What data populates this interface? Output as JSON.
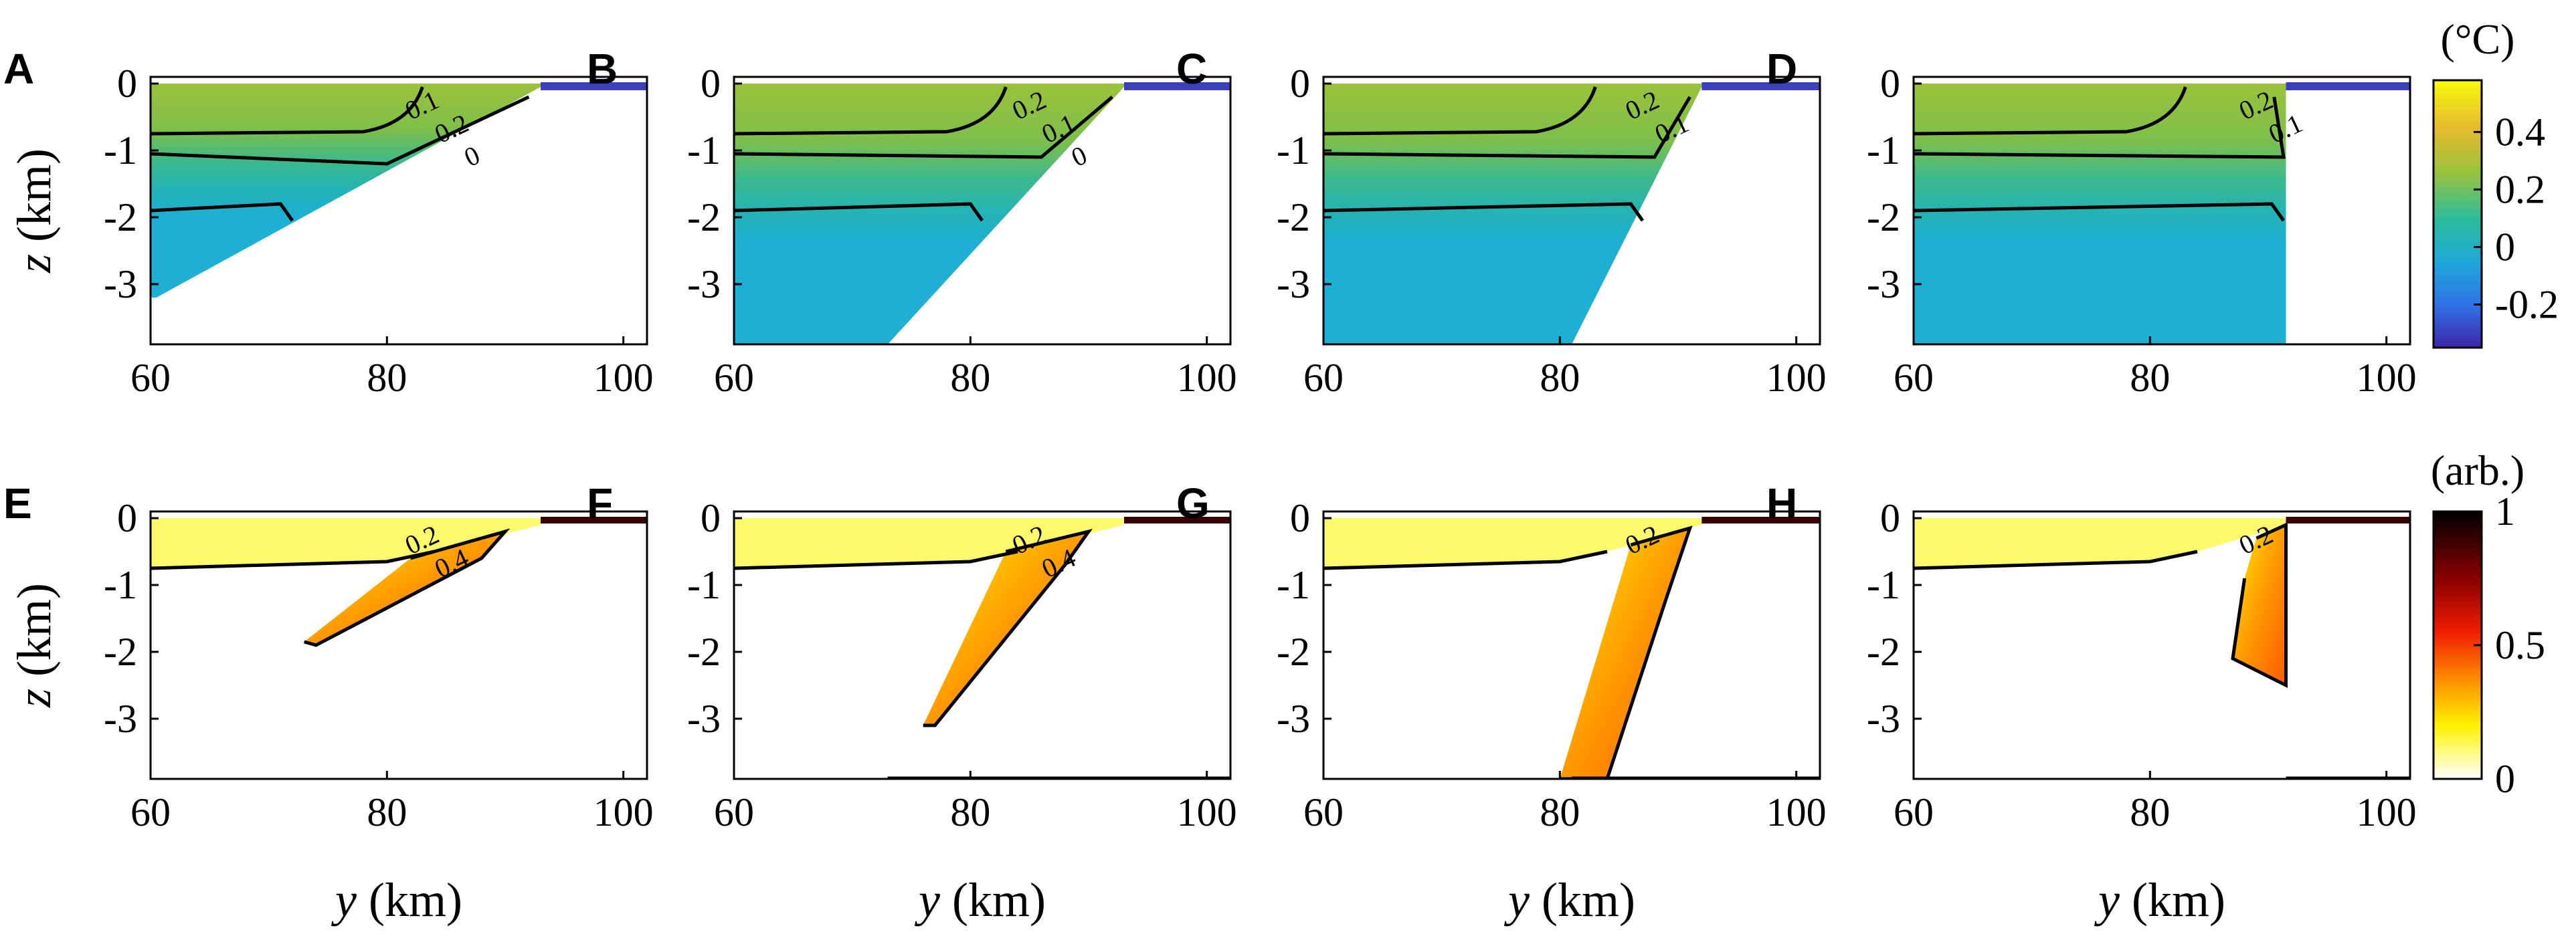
{
  "chart_data": {
    "type": "heatmap",
    "description_units": {
      "temperature_unit": "(°C)",
      "tracer_unit": "(arb.)"
    },
    "panels": [
      {
        "label": "A",
        "row": "temperature",
        "variant": "slope1",
        "contour_labels": [
          "0.1",
          "0.2",
          "0"
        ]
      },
      {
        "label": "B",
        "row": "temperature",
        "variant": "slope2",
        "contour_labels": [
          "0.2",
          "0.1",
          "0"
        ]
      },
      {
        "label": "C",
        "row": "temperature",
        "variant": "slope3",
        "contour_labels": [
          "0.2",
          "0.1"
        ]
      },
      {
        "label": "D",
        "row": "temperature",
        "variant": "wall",
        "contour_labels": [
          "0.2",
          "0.1"
        ]
      },
      {
        "label": "E",
        "row": "tracer",
        "variant": "slope1",
        "contour_labels": [
          "0.2",
          "0.4"
        ]
      },
      {
        "label": "F",
        "row": "tracer",
        "variant": "slope2",
        "contour_labels": [
          "0.2",
          "0.4"
        ]
      },
      {
        "label": "G",
        "row": "tracer",
        "variant": "slope3",
        "contour_labels": [
          "0.2"
        ]
      },
      {
        "label": "H",
        "row": "tracer",
        "variant": "wall",
        "contour_labels": [
          "0.2"
        ]
      }
    ],
    "x_axis": {
      "label_var": "y",
      "label_unit": "(km)",
      "range": [
        60,
        102
      ],
      "ticks": [
        "60",
        "80",
        "100"
      ]
    },
    "y_axis": {
      "label_var": "z",
      "label_unit": "(km)",
      "range": [
        -3.9,
        0.1
      ],
      "ticks": [
        "0",
        "-1",
        "-2",
        "-3"
      ]
    },
    "colorbars": [
      {
        "unit": "(°C)",
        "range": [
          -0.35,
          0.58
        ],
        "ticks": [
          "0.4",
          "0.2",
          "0",
          "-0.2"
        ],
        "tick_values": [
          0.4,
          0.2,
          0,
          -0.2
        ]
      },
      {
        "unit": "(arb.)",
        "range": [
          0,
          1
        ],
        "ticks": [
          "1",
          "0.5",
          "0"
        ],
        "tick_values": [
          1,
          0.5,
          0
        ]
      }
    ]
  }
}
